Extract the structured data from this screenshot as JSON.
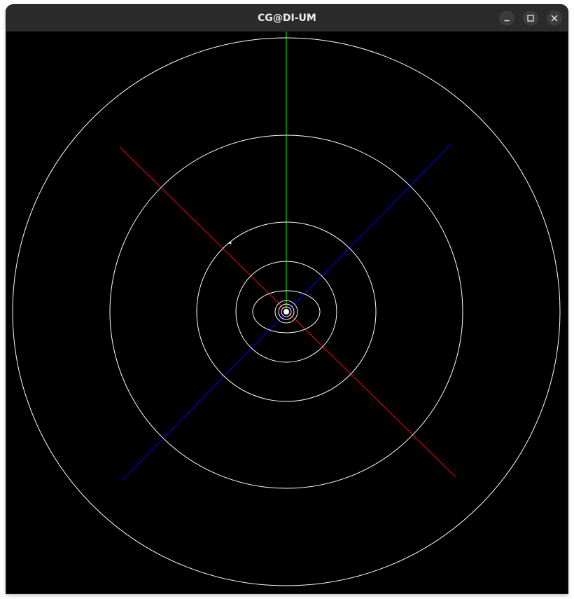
{
  "window": {
    "title": "CG@DI-UM",
    "controls": {
      "minimize": "minimize-icon",
      "maximize": "maximize-icon",
      "close": "close-icon"
    }
  },
  "scene": {
    "background": "#000000",
    "axes": {
      "x_color": "#ff0000",
      "y_color": "#00ff00",
      "z_color": "#0000ff"
    },
    "orbit_color": "#ffffff",
    "body_color": "#ffffff"
  }
}
